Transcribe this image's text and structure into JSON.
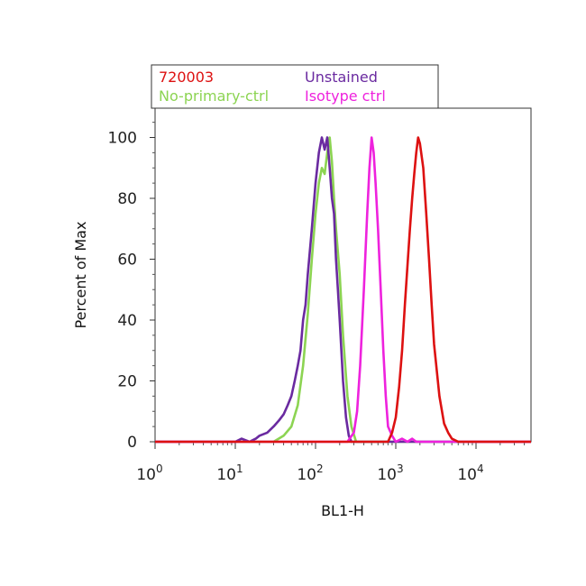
{
  "chart_data": {
    "type": "line",
    "title": "",
    "xlabel": "BL1-H",
    "ylabel": "Percent of Max",
    "x_scale": "log",
    "xlim": [
      1,
      60000
    ],
    "ylim": [
      0,
      108
    ],
    "x_ticks": [
      {
        "value": 1,
        "base": "10",
        "exp": "0"
      },
      {
        "value": 10,
        "base": "10",
        "exp": "1"
      },
      {
        "value": 100,
        "base": "10",
        "exp": "2"
      },
      {
        "value": 1000,
        "base": "10",
        "exp": "3"
      },
      {
        "value": 10000,
        "base": "10",
        "exp": "4"
      }
    ],
    "y_ticks": [
      {
        "value": 0,
        "label": "0"
      },
      {
        "value": 20,
        "label": "20"
      },
      {
        "value": 40,
        "label": "40"
      },
      {
        "value": 60,
        "label": "60"
      },
      {
        "value": 80,
        "label": "80"
      },
      {
        "value": 100,
        "label": "100"
      }
    ],
    "grid": false,
    "legend_position": "top",
    "series": [
      {
        "name": "No-primary-ctrl",
        "color": "#8cd452",
        "x": [
          1,
          30,
          40,
          50,
          60,
          70,
          80,
          90,
          100,
          110,
          120,
          130,
          140,
          150,
          160,
          170,
          180,
          200,
          220,
          250,
          280,
          320,
          60000
        ],
        "y": [
          0,
          0,
          2,
          5,
          12,
          25,
          42,
          60,
          75,
          85,
          90,
          88,
          95,
          100,
          92,
          80,
          70,
          55,
          35,
          15,
          5,
          0,
          0
        ]
      },
      {
        "name": "Unstained",
        "color": "#6a2aa0",
        "x": [
          1,
          10,
          12,
          15,
          18,
          20,
          25,
          30,
          35,
          40,
          45,
          50,
          55,
          60,
          65,
          70,
          75,
          80,
          90,
          100,
          110,
          120,
          130,
          140,
          150,
          160,
          170,
          180,
          190,
          200,
          220,
          240,
          260,
          280,
          60000
        ],
        "y": [
          0,
          0,
          1,
          0,
          1,
          2,
          3,
          5,
          7,
          9,
          12,
          15,
          20,
          25,
          30,
          40,
          45,
          55,
          70,
          85,
          95,
          100,
          96,
          100,
          90,
          80,
          75,
          60,
          50,
          40,
          20,
          8,
          2,
          0,
          0
        ]
      },
      {
        "name": "Isotype ctrl",
        "color": "#ee22dd",
        "x": [
          1,
          250,
          300,
          330,
          360,
          400,
          440,
          470,
          500,
          530,
          560,
          600,
          650,
          700,
          750,
          800,
          900,
          1000,
          1200,
          1400,
          1600,
          1800,
          60000
        ],
        "y": [
          0,
          0,
          3,
          10,
          25,
          50,
          75,
          90,
          100,
          95,
          85,
          70,
          50,
          30,
          15,
          5,
          2,
          0,
          1,
          0,
          1,
          0,
          0
        ]
      },
      {
        "name": "720003",
        "color": "#dd1111",
        "x": [
          1,
          800,
          900,
          1000,
          1100,
          1200,
          1300,
          1400,
          1500,
          1600,
          1700,
          1800,
          1900,
          2000,
          2200,
          2400,
          2600,
          2800,
          3000,
          3500,
          4000,
          4500,
          5000,
          6000,
          7000,
          60000
        ],
        "y": [
          0,
          0,
          3,
          8,
          18,
          30,
          45,
          58,
          70,
          80,
          88,
          95,
          100,
          98,
          90,
          75,
          60,
          45,
          32,
          15,
          6,
          3,
          1,
          0,
          0,
          0
        ]
      }
    ]
  },
  "legend": {
    "entries": [
      {
        "label": "720003",
        "color": "#dd1111"
      },
      {
        "label": "Unstained",
        "color": "#6a2aa0"
      },
      {
        "label": "No-primary-ctrl",
        "color": "#8cd452"
      },
      {
        "label": "Isotype ctrl",
        "color": "#ee22dd"
      }
    ]
  }
}
